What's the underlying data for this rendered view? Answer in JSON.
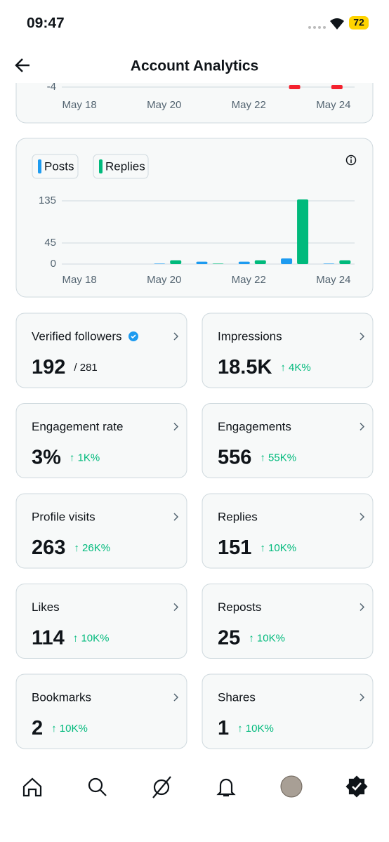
{
  "status_bar": {
    "time": "09:47",
    "battery": "72"
  },
  "header": {
    "title": "Account Analytics"
  },
  "chart_data": [
    {
      "type": "bar",
      "categories": [
        "May 18",
        null,
        "May 20",
        null,
        "May 22",
        null,
        "May 24"
      ],
      "series": [
        {
          "color": "#f4212e",
          "values": [
            null,
            null,
            null,
            null,
            null,
            -5,
            -5
          ]
        }
      ],
      "ylim": [
        -5,
        -3
      ],
      "yticks": [
        -4
      ],
      "grid": true
    },
    {
      "type": "bar",
      "categories": [
        "May 18",
        null,
        "May 20",
        null,
        "May 22",
        null,
        "May 24"
      ],
      "series": [
        {
          "name": "Posts",
          "color": "#1d9bf0",
          "values": [
            0,
            0,
            1,
            5,
            5,
            12,
            1
          ]
        },
        {
          "name": "Replies",
          "color": "#00ba7c",
          "values": [
            0,
            0,
            8,
            1,
            8,
            138,
            8
          ]
        }
      ],
      "ylim": [
        0,
        140
      ],
      "yticks": [
        0,
        45,
        135
      ],
      "grid": true
    }
  ],
  "stats": [
    {
      "label": "Verified followers",
      "value": "192",
      "detail": "/ 281"
    },
    {
      "label": "Impressions",
      "value": "18.5K",
      "change": "↑ 4K%"
    },
    {
      "label": "Engagement rate",
      "value": "3%",
      "change": "↑ 1K%"
    },
    {
      "label": "Engagements",
      "value": "556",
      "change": "↑ 55K%"
    },
    {
      "label": "Profile visits",
      "value": "263",
      "change": "↑ 26K%"
    },
    {
      "label": "Replies",
      "value": "151",
      "change": "↑ 10K%"
    },
    {
      "label": "Likes",
      "value": "114",
      "change": "↑ 10K%"
    },
    {
      "label": "Reposts",
      "value": "25",
      "change": "↑ 10K%"
    },
    {
      "label": "Bookmarks",
      "value": "2",
      "change": "↑ 10K%"
    },
    {
      "label": "Shares",
      "value": "1",
      "change": "↑ 10K%"
    }
  ]
}
